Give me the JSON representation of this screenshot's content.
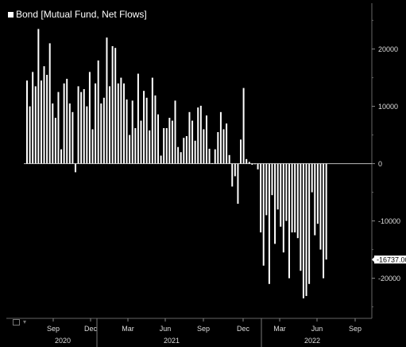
{
  "chart_data": {
    "type": "bar",
    "legend": "Bond [Mutual Fund, Net Flows]",
    "ylim": [
      -27000,
      28000
    ],
    "yticks": [
      20000,
      10000,
      0,
      -10000,
      -20000
    ],
    "ytick_labels": [
      "20000",
      "10000",
      "0",
      "-10000",
      "-20000"
    ],
    "last_value_label": "-16737.00",
    "last_value": -16737,
    "months": [
      "Sep",
      "Dec",
      "Mar",
      "Jun",
      "Sep",
      "Dec",
      "Mar",
      "Jun",
      "Sep"
    ],
    "years": [
      "2020",
      "2021",
      "2022"
    ],
    "values": [
      14500,
      10000,
      16000,
      13500,
      23500,
      14500,
      17000,
      15500,
      21000,
      10500,
      8000,
      12500,
      2500,
      14000,
      14800,
      10500,
      9000,
      -1500,
      13500,
      12500,
      13000,
      10000,
      16000,
      6000,
      14000,
      18000,
      10500,
      11500,
      22000,
      13500,
      20500,
      20200,
      14000,
      15000,
      14000,
      11200,
      5000,
      11000,
      6200,
      15700,
      7500,
      12700,
      11500,
      5800,
      15000,
      11900,
      8600,
      1400,
      6200,
      6200,
      8000,
      7500,
      11000,
      2900,
      2000,
      4500,
      4800,
      9000,
      7500,
      4000,
      9800,
      10100,
      6000,
      8400,
      2600,
      100,
      2500,
      5500,
      9000,
      6000,
      7000,
      1500,
      -4000,
      -2200,
      -7000,
      4200,
      13200,
      800,
      300,
      -200,
      -100,
      -1000,
      -12000,
      -17800,
      -9000,
      -21000,
      -5500,
      -14000,
      -8000,
      -11000,
      -15500,
      -10000,
      -20000,
      -12000,
      -12000,
      -13000,
      -18700,
      -23500,
      -23100,
      -21000,
      -5000,
      -12500,
      -10500,
      -15000,
      -20000,
      -16737
    ]
  }
}
